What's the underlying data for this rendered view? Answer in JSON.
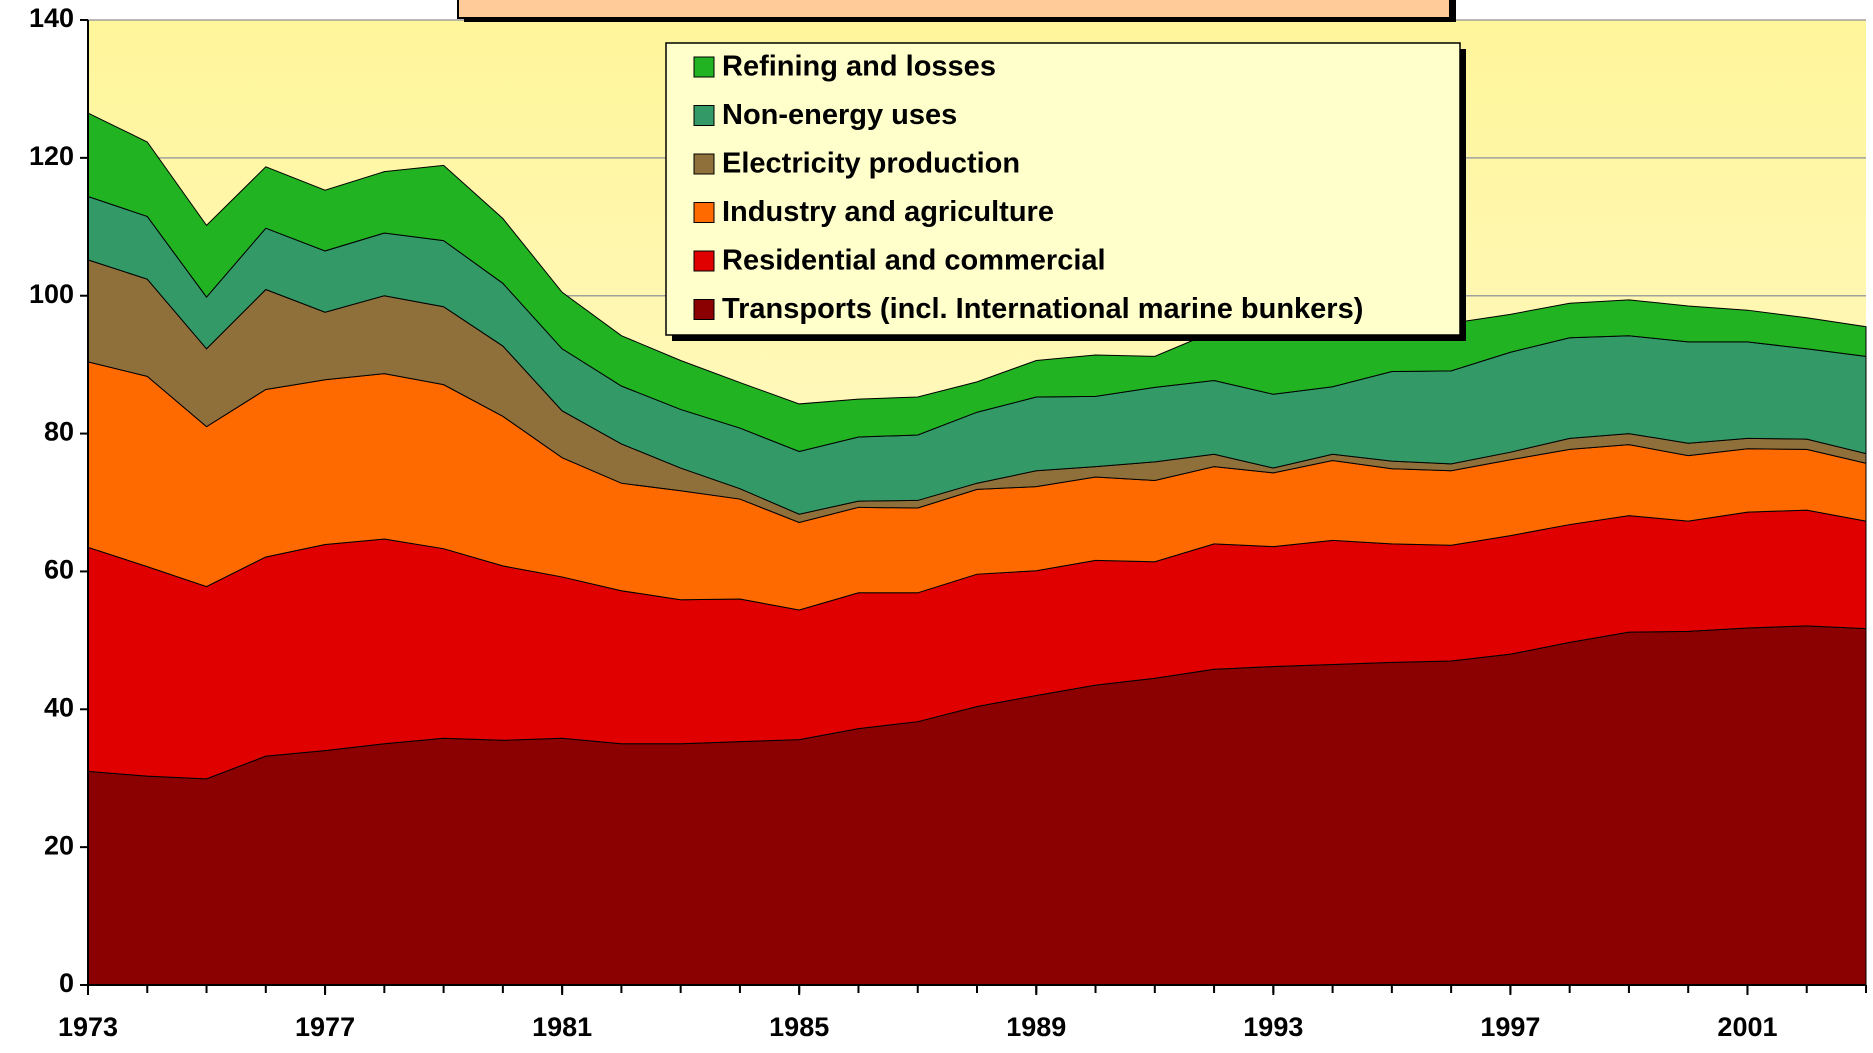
{
  "chart_data": {
    "type": "stacked_area",
    "x": [
      1973,
      1974,
      1975,
      1976,
      1977,
      1978,
      1979,
      1980,
      1981,
      1982,
      1983,
      1984,
      1985,
      1986,
      1987,
      1988,
      1989,
      1990,
      1991,
      1992,
      1993,
      1994,
      1995,
      1996,
      1997,
      1998,
      1999,
      2000,
      2001,
      2002,
      2003
    ],
    "series": [
      {
        "name": "Transports (incl. International marine bunkers)",
        "color": "#8b0000",
        "values": [
          31,
          30.3,
          29.9,
          33.2,
          34,
          35,
          35.8,
          35.5,
          35.8,
          35,
          35,
          35.3,
          35.6,
          37.2,
          38.2,
          40.4,
          42,
          43.5,
          44.5,
          45.8,
          46.2,
          46.5,
          46.8,
          47,
          48,
          49.7,
          51.2,
          51.3,
          51.8,
          52.1,
          51.7
        ]
      },
      {
        "name": "Residential and commercial",
        "color": "#e00000",
        "values": [
          32.5,
          30.4,
          27.9,
          28.9,
          29.9,
          29.7,
          27.5,
          25.3,
          23.4,
          22.2,
          20.9,
          20.7,
          18.8,
          19.7,
          18.7,
          19.2,
          18.1,
          18.1,
          16.9,
          18.2,
          17.4,
          18,
          17.2,
          16.8,
          17.2,
          17.1,
          16.9,
          16,
          16.8,
          16.8,
          15.6
        ]
      },
      {
        "name": "Industry and agriculture",
        "color": "#ff6a00",
        "values": [
          26.9,
          27.6,
          23.2,
          24.3,
          23.9,
          24,
          23.8,
          21.7,
          17.3,
          15.6,
          15.8,
          14.5,
          12.7,
          12.4,
          12.3,
          12.3,
          12.2,
          12.1,
          11.8,
          11.2,
          10.7,
          11.6,
          10.9,
          10.8,
          11,
          10.9,
          10.3,
          9.5,
          9.2,
          8.8,
          8.4
        ]
      },
      {
        "name": "Electricity production",
        "color": "#8f703a",
        "values": [
          14.8,
          14.1,
          11.3,
          14.5,
          9.8,
          11.3,
          11.3,
          10.2,
          6.8,
          5.7,
          3.3,
          1.5,
          1.2,
          0.9,
          1.1,
          0.9,
          2.3,
          1.5,
          2.7,
          1.8,
          0.7,
          0.9,
          1.1,
          1,
          1.1,
          1.6,
          1.6,
          1.8,
          1.5,
          1.5,
          1.4
        ]
      },
      {
        "name": "Non-energy uses",
        "color": "#339966",
        "values": [
          9.2,
          9.1,
          7.5,
          8.9,
          8.9,
          9.1,
          9.6,
          9.1,
          9,
          8.4,
          8.5,
          8.8,
          9.1,
          9.3,
          9.5,
          10.3,
          10.7,
          10.2,
          10.8,
          10.7,
          10.7,
          9.8,
          13,
          13.5,
          14.5,
          14.6,
          14.2,
          14.7,
          14,
          13.1,
          14.1
        ]
      },
      {
        "name": "Refining and losses",
        "color": "#22b322",
        "values": [
          12.1,
          10.8,
          10.4,
          8.9,
          8.8,
          8.9,
          10.9,
          9.4,
          8.2,
          7.3,
          7.1,
          6.6,
          6.9,
          5.5,
          5.5,
          4.4,
          5.3,
          6,
          4.5,
          7.1,
          8,
          7.2,
          6.5,
          6.9,
          5.5,
          5,
          5.2,
          5.2,
          4.6,
          4.5,
          4.3
        ]
      }
    ],
    "xlim": [
      1973,
      2003
    ],
    "xticks": [
      1973,
      1977,
      1981,
      1985,
      1989,
      1993,
      1997,
      2001
    ],
    "ylim": [
      0,
      140
    ],
    "yticks": [
      0,
      20,
      40,
      60,
      80,
      100,
      120,
      140
    ],
    "grid": true,
    "legend": "top"
  }
}
